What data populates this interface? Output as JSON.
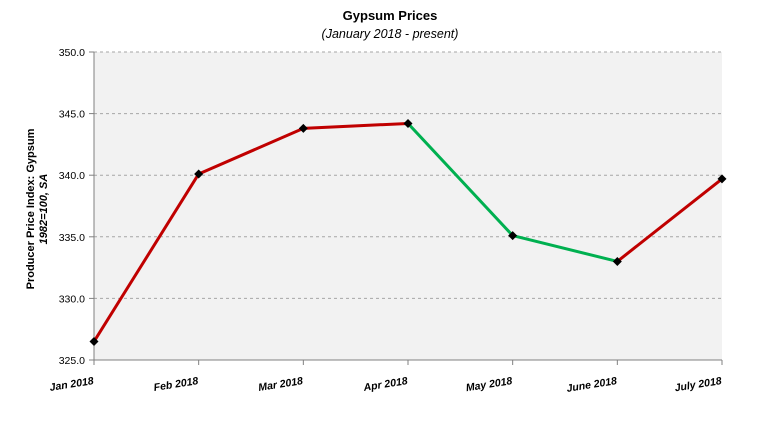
{
  "chart_data": {
    "type": "line",
    "title": "Gypsum Prices",
    "subtitle": "(January 2018 - present)",
    "ylabel_line1": "Producer Price Index: Gypsum",
    "ylabel_line2": "1982=100, SA",
    "xlabel": "",
    "categories": [
      "Jan 2018",
      "Feb 2018",
      "Mar 2018",
      "Apr 2018",
      "May 2018",
      "June 2018",
      "July 2018"
    ],
    "series": [
      {
        "values": [
          326.5,
          340.1,
          343.8,
          344.2,
          335.1,
          333.0,
          339.7
        ]
      }
    ],
    "ylim": [
      325.0,
      350.0
    ],
    "yticks": [
      "325.0",
      "330.0",
      "335.0",
      "340.0",
      "345.0",
      "350.0"
    ],
    "grid": true,
    "legend": "none",
    "colors": {
      "increase": "#c00000",
      "decrease": "#00b050",
      "marker": "#000000",
      "plot_background": "#f2f2f2",
      "gridline": "#a6a6a6"
    }
  }
}
